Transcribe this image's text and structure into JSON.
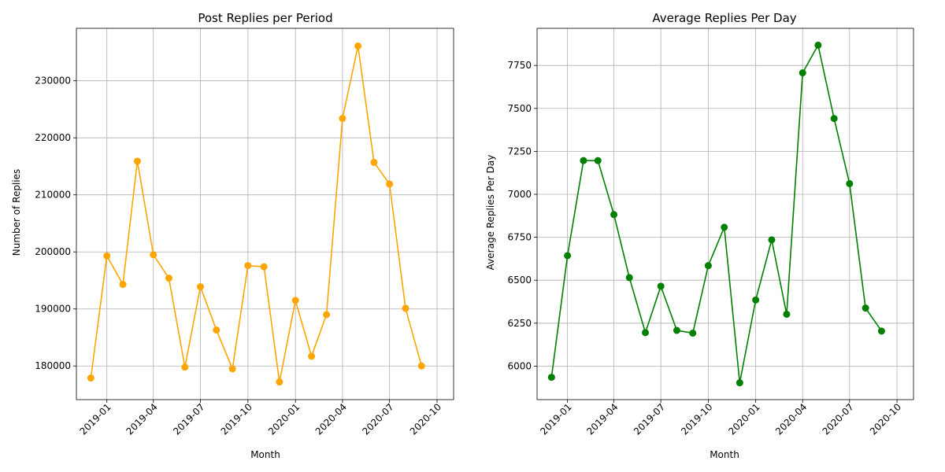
{
  "chart_data": [
    {
      "type": "line",
      "title": "Post Replies per Period",
      "xlabel": "Month",
      "ylabel": "Number of Replies",
      "grid": true,
      "color": "#ffa500",
      "marker": "circle",
      "x": [
        "2018-12-01",
        "2019-01-01",
        "2019-02-01",
        "2019-03-01",
        "2019-04-01",
        "2019-05-01",
        "2019-06-01",
        "2019-07-01",
        "2019-08-01",
        "2019-09-01",
        "2019-10-01",
        "2019-11-01",
        "2019-12-01",
        "2020-01-01",
        "2020-02-01",
        "2020-03-01",
        "2020-04-01",
        "2020-05-01",
        "2020-06-01",
        "2020-07-01",
        "2020-08-01",
        "2020-09-01"
      ],
      "values": [
        177900,
        199300,
        194300,
        215900,
        199500,
        195400,
        179800,
        193900,
        186300,
        179500,
        197600,
        197400,
        177200,
        191500,
        181700,
        189000,
        223400,
        236100,
        215700,
        211900,
        190100,
        180000
      ],
      "xticks": [
        "2019-01",
        "2019-04",
        "2019-07",
        "2019-10",
        "2020-01",
        "2020-04",
        "2020-07",
        "2020-10"
      ],
      "yticks": [
        180000,
        190000,
        200000,
        210000,
        220000,
        230000
      ],
      "ylim": [
        174100,
        239200
      ]
    },
    {
      "type": "line",
      "title": "Average Replies Per Day",
      "xlabel": "Month",
      "ylabel": "Average Replies Per Day",
      "grid": true,
      "color": "#008000",
      "marker": "circle",
      "x": [
        "2018-12-01",
        "2019-01-01",
        "2019-02-01",
        "2019-03-01",
        "2019-04-01",
        "2019-05-01",
        "2019-06-01",
        "2019-07-01",
        "2019-08-01",
        "2019-09-01",
        "2019-10-01",
        "2019-11-01",
        "2019-12-01",
        "2020-01-01",
        "2020-02-01",
        "2020-03-01",
        "2020-04-01",
        "2020-05-01",
        "2020-06-01",
        "2020-07-01",
        "2020-08-01",
        "2020-09-01"
      ],
      "values": [
        5935,
        6643,
        7196,
        7196,
        6882,
        6515,
        6195,
        6465,
        6208,
        6192,
        6585,
        6808,
        5903,
        6385,
        6735,
        6302,
        7707,
        7868,
        7441,
        7062,
        6338,
        6204
      ],
      "xticks": [
        "2019-01",
        "2019-04",
        "2019-07",
        "2019-10",
        "2020-01",
        "2020-04",
        "2020-07",
        "2020-10"
      ],
      "yticks": [
        6000,
        6250,
        6500,
        6750,
        7000,
        7250,
        7500,
        7750
      ],
      "ylim": [
        5805,
        7966
      ]
    }
  ]
}
